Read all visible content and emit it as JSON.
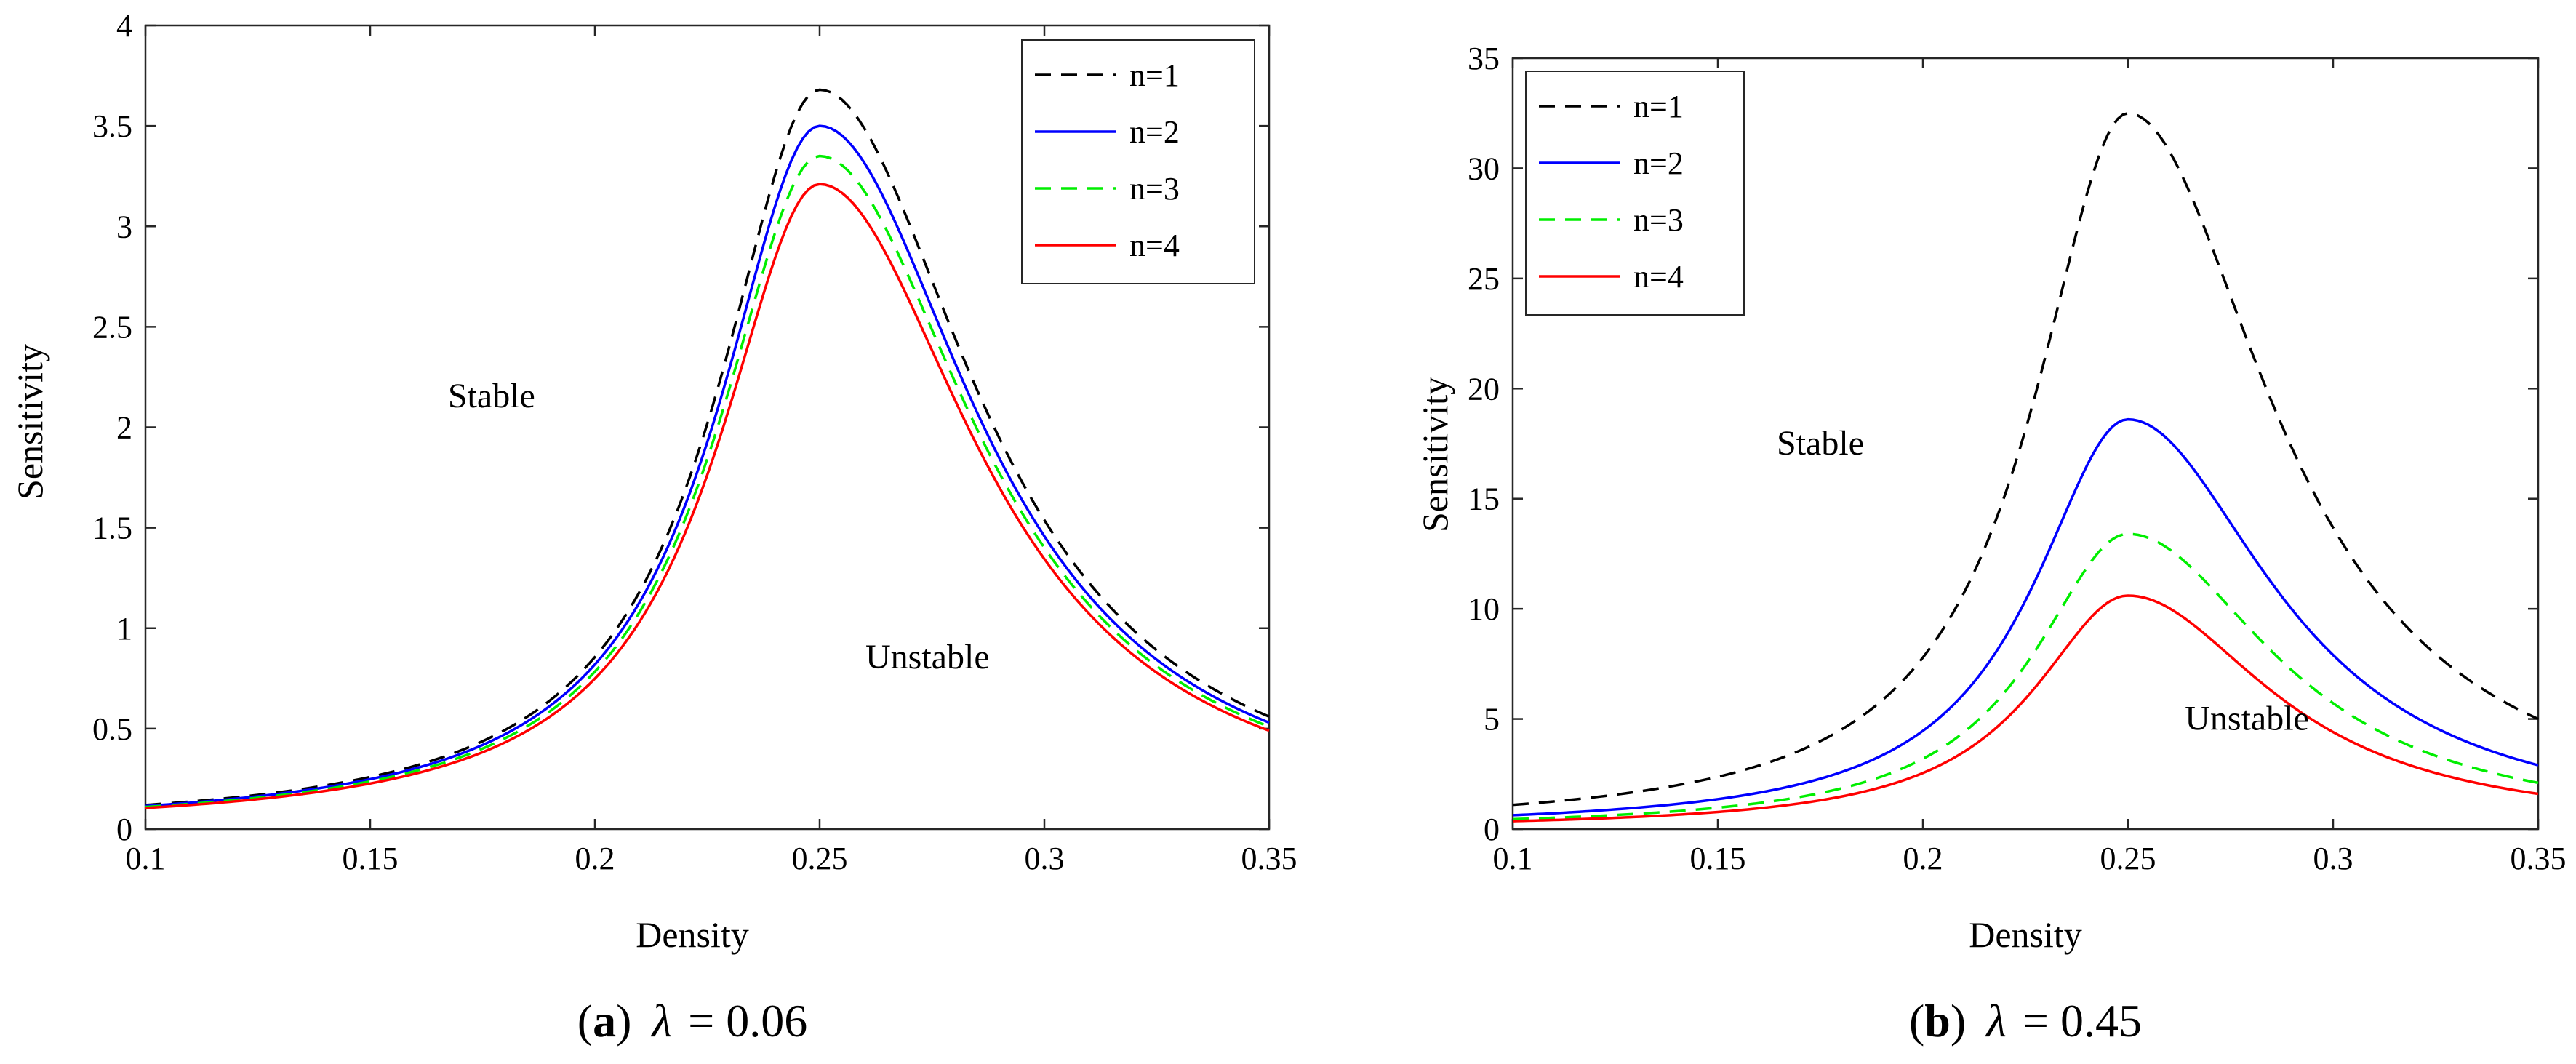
{
  "chart_data": [
    {
      "type": "line",
      "panel": "a",
      "caption": {
        "label": "a",
        "param_symbol": "λ",
        "param_value": "= 0.06"
      },
      "xlabel": "Density",
      "ylabel": "Sensitivity",
      "xlim": [
        0.1,
        0.35
      ],
      "ylim": [
        0,
        4
      ],
      "xticks": [
        "0.1",
        "0.15",
        "0.2",
        "0.25",
        "0.3",
        "0.35"
      ],
      "yticks": [
        "0",
        "0.5",
        "1",
        "1.5",
        "2",
        "2.5",
        "3",
        "3.5",
        "4"
      ],
      "grid": false,
      "legend_position": "top-right",
      "annotations": [
        {
          "text": "Stable",
          "x": 0.177,
          "y": 2.1
        },
        {
          "text": "Unstable",
          "x": 0.274,
          "y": 0.8
        }
      ],
      "series": [
        {
          "name": "n=1",
          "color": "#000000",
          "dash": "dashed",
          "peak": 3.68,
          "end": 0.56,
          "start": 0.12
        },
        {
          "name": "n=2",
          "color": "#0000ff",
          "dash": "solid",
          "peak": 3.5,
          "end": 0.53,
          "start": 0.115
        },
        {
          "name": "n=3",
          "color": "#00ee00",
          "dash": "dashed",
          "peak": 3.35,
          "end": 0.51,
          "start": 0.11
        },
        {
          "name": "n=4",
          "color": "#ff0000",
          "dash": "solid",
          "peak": 3.21,
          "end": 0.49,
          "start": 0.105
        }
      ]
    },
    {
      "type": "line",
      "panel": "b",
      "caption": {
        "label": "b",
        "param_symbol": "λ",
        "param_value": "= 0.45"
      },
      "xlabel": "Density",
      "ylabel": "Sensitivity",
      "xlim": [
        0.1,
        0.35
      ],
      "ylim": [
        0,
        35
      ],
      "xticks": [
        "0.1",
        "0.15",
        "0.2",
        "0.25",
        "0.3",
        "0.35"
      ],
      "yticks": [
        "0",
        "5",
        "10",
        "15",
        "20",
        "25",
        "30",
        "35"
      ],
      "grid": false,
      "legend_position": "top-left",
      "annotations": [
        {
          "text": "Stable",
          "x": 0.175,
          "y": 17
        },
        {
          "text": "Unstable",
          "x": 0.279,
          "y": 4.5
        }
      ],
      "series": [
        {
          "name": "n=1",
          "color": "#000000",
          "dash": "dashed",
          "peak": 32.5,
          "end": 5.0,
          "start": 1.1
        },
        {
          "name": "n=2",
          "color": "#0000ff",
          "dash": "solid",
          "peak": 18.6,
          "end": 2.9,
          "start": 0.63
        },
        {
          "name": "n=3",
          "color": "#00ee00",
          "dash": "dashed",
          "peak": 13.4,
          "end": 2.1,
          "start": 0.45
        },
        {
          "name": "n=4",
          "color": "#ff0000",
          "dash": "solid",
          "peak": 10.6,
          "end": 1.6,
          "start": 0.36
        }
      ]
    }
  ]
}
